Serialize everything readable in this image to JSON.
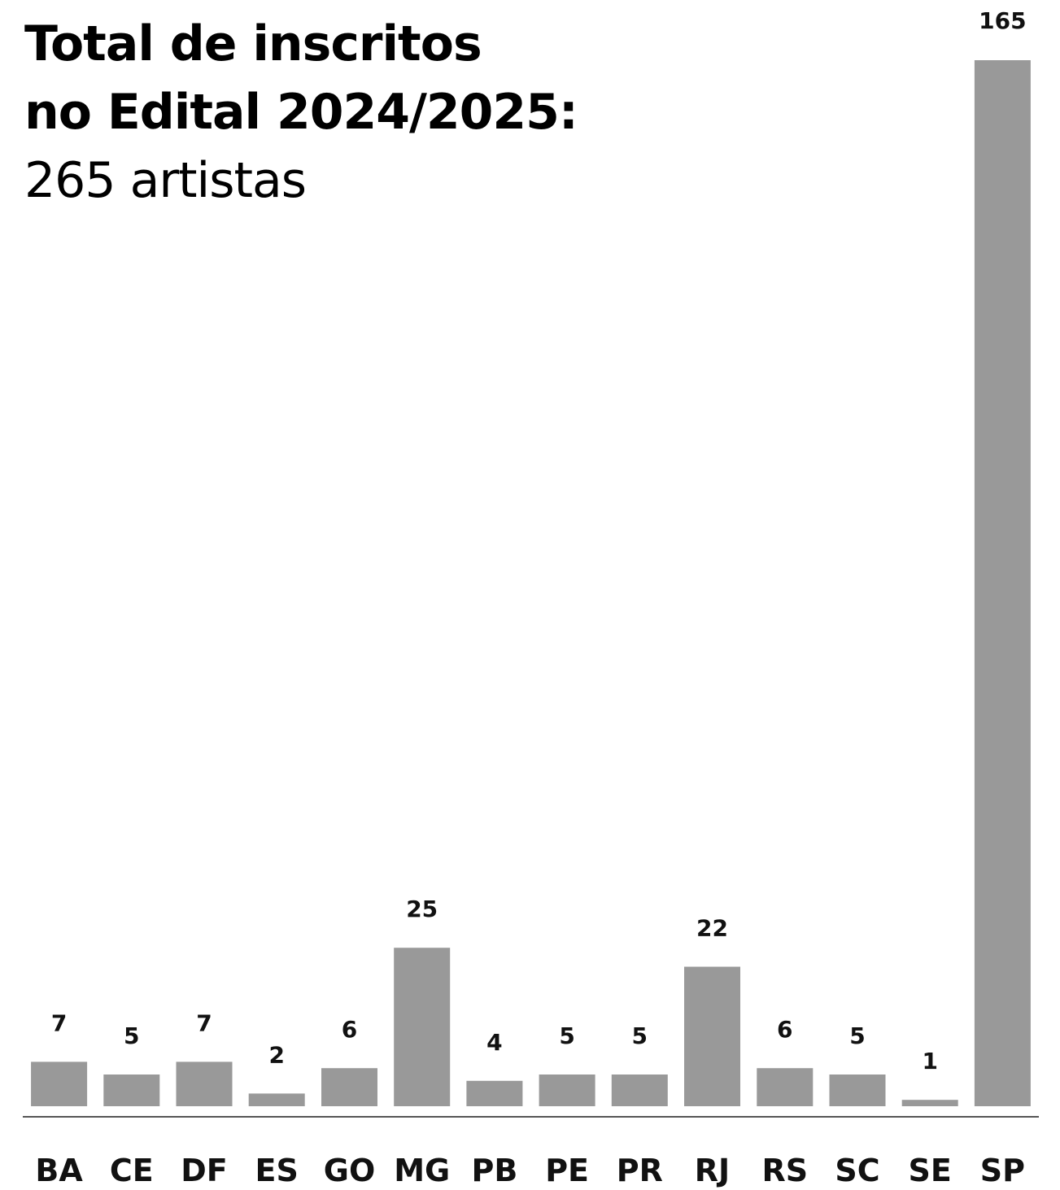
{
  "title_lines": [
    "Total de inscritos",
    "no Edital 2024/2025:"
  ],
  "subtitle": "265 artistas",
  "chart_data": {
    "type": "bar",
    "title": "Total de inscritos no Edital 2024/2025:",
    "subtitle": "265 artistas",
    "categories": [
      "BA",
      "CE",
      "DF",
      "ES",
      "GO",
      "MG",
      "PB",
      "PE",
      "PR",
      "RJ",
      "RS",
      "SC",
      "SE",
      "SP"
    ],
    "values": [
      7,
      5,
      7,
      2,
      6,
      25,
      4,
      5,
      5,
      22,
      6,
      5,
      1,
      165
    ],
    "value_labels": [
      "7",
      "5",
      "7",
      "2",
      "6",
      "25",
      "4",
      "5",
      "5",
      "22",
      "6",
      "5",
      "1",
      "165"
    ],
    "ylim": [
      0,
      165
    ],
    "grid": false,
    "legend": "none",
    "bar_color": "#999999",
    "xlabel": "",
    "ylabel": ""
  }
}
